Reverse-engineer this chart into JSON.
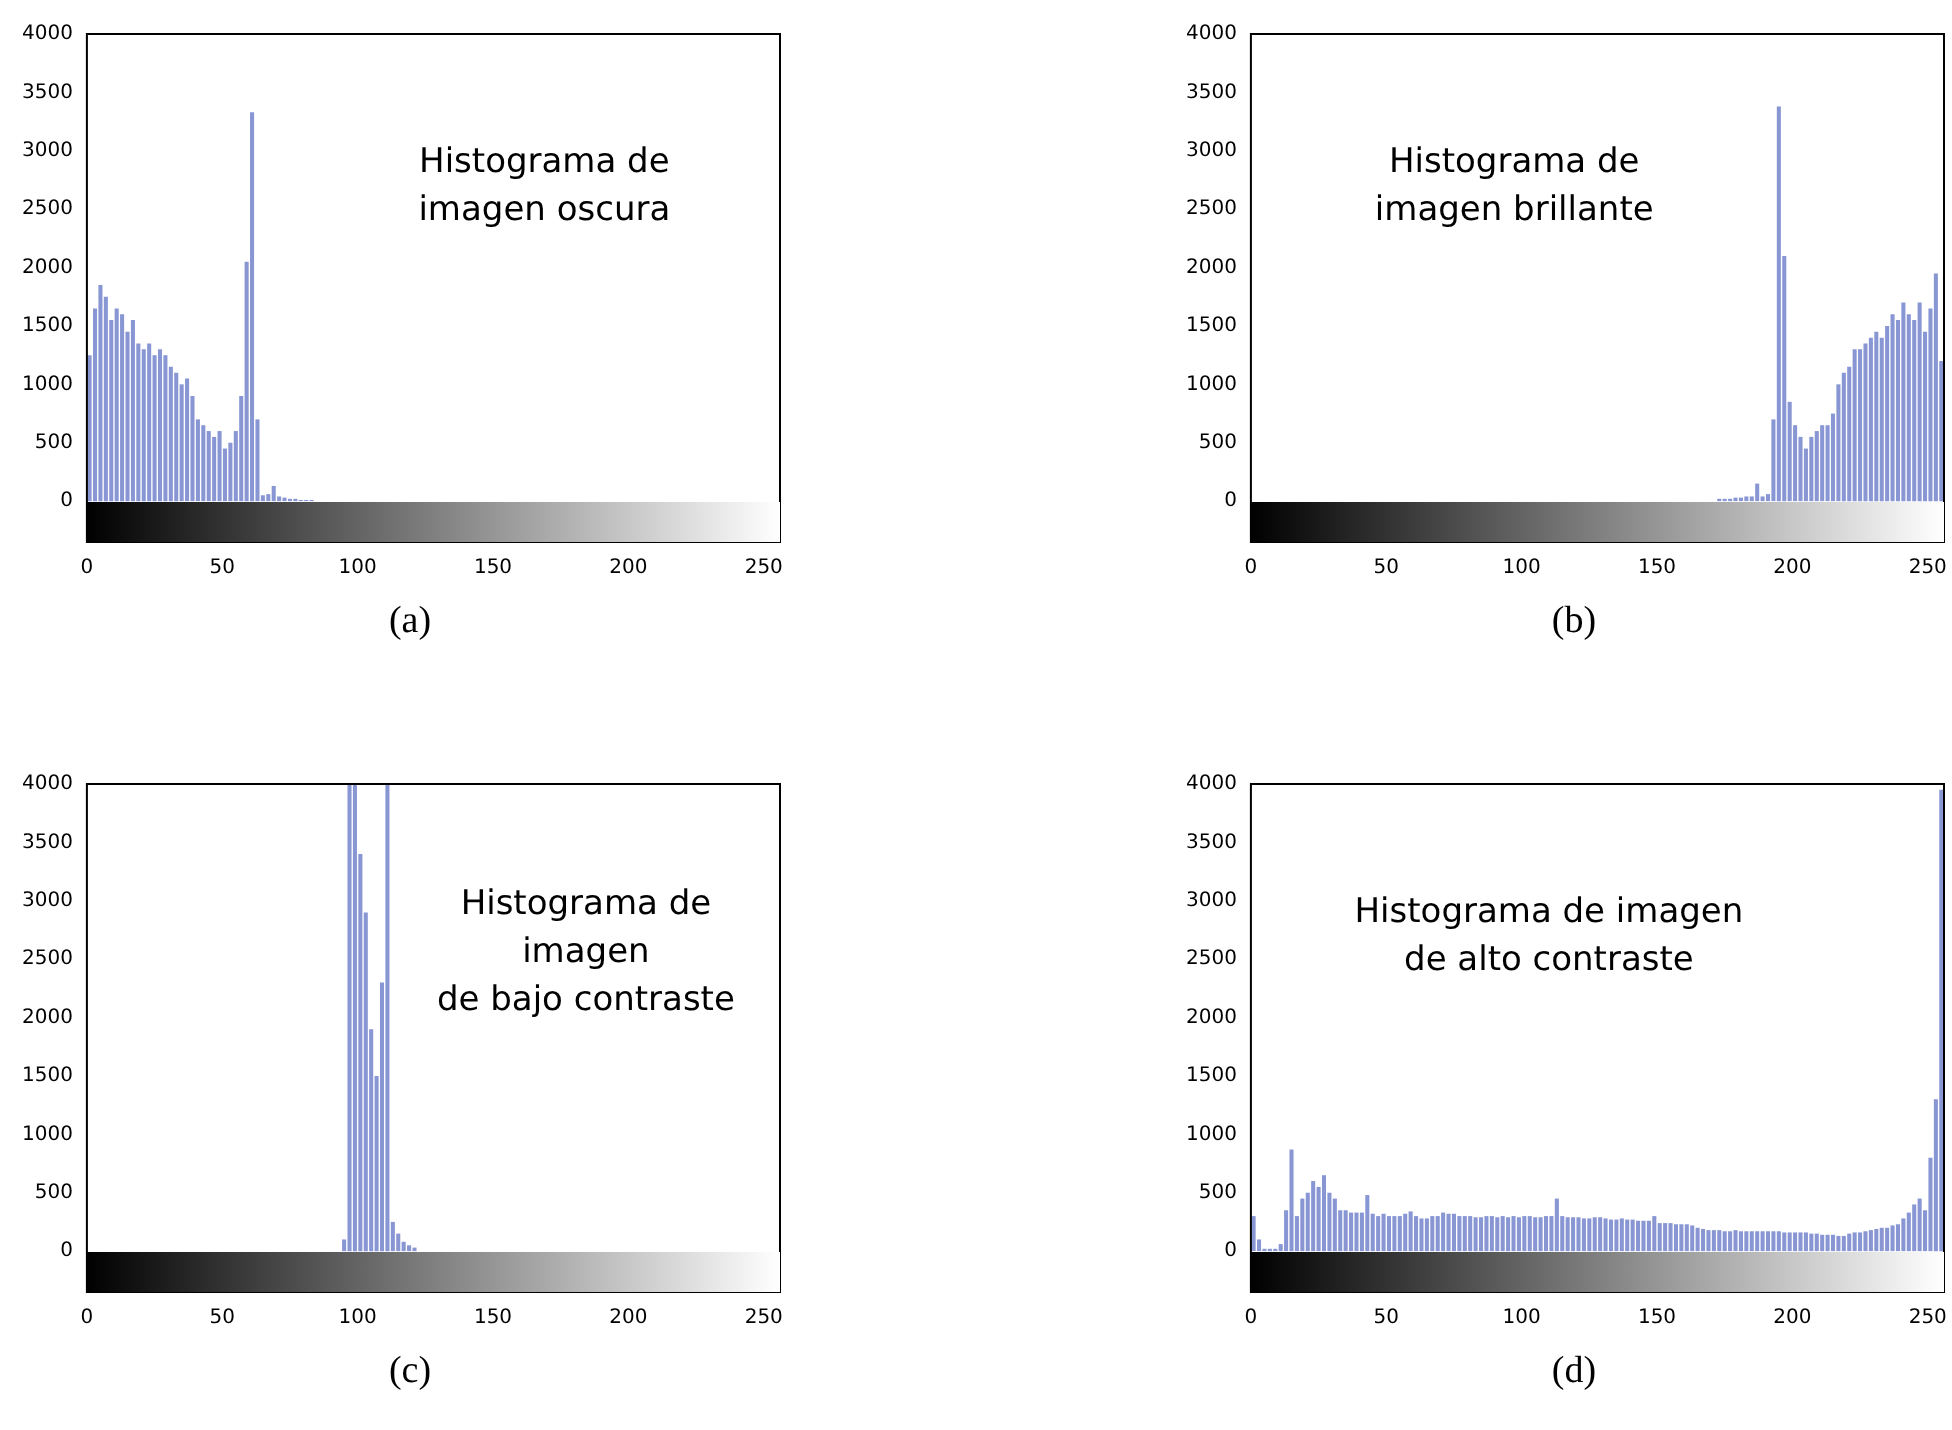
{
  "chart_data": [
    {
      "type": "histogram",
      "annotations": [
        "Histograma de\nimagen oscura",
        "(a)"
      ],
      "color": "#8896d4",
      "xlim": [
        0,
        256
      ],
      "xticks": [
        0,
        50,
        100,
        150,
        200,
        250
      ],
      "ylim": [
        -350,
        4000
      ],
      "yticks": [
        0,
        500,
        1000,
        1500,
        2000,
        2500,
        3000,
        3500,
        4000
      ],
      "bins": [
        0,
        2,
        4,
        6,
        8,
        10,
        12,
        14,
        16,
        18,
        20,
        22,
        24,
        26,
        28,
        30,
        32,
        34,
        36,
        38,
        40,
        42,
        44,
        46,
        48,
        50,
        52,
        54,
        56,
        58,
        60,
        62,
        64,
        66,
        68,
        70,
        72,
        74,
        76,
        78,
        80,
        82,
        84,
        86,
        88,
        90,
        92,
        94,
        96,
        98,
        100,
        102,
        104,
        106,
        108,
        110,
        112,
        114,
        116,
        118,
        120,
        122,
        124,
        126,
        128,
        130,
        132,
        134,
        136,
        138,
        140,
        142,
        144,
        146,
        148,
        150,
        152,
        154,
        156,
        158,
        160,
        162,
        164,
        166,
        168,
        170,
        172,
        174,
        176,
        178,
        180,
        182,
        184,
        186,
        188,
        190,
        192,
        194,
        196,
        198,
        200,
        202,
        204,
        206,
        208,
        210,
        212,
        214,
        216,
        218,
        220,
        222,
        224,
        226,
        228,
        230,
        232,
        234,
        236,
        238,
        240,
        242,
        244,
        246,
        248,
        250,
        252,
        254,
        256
      ],
      "values": [
        1250,
        1650,
        1850,
        1750,
        1550,
        1650,
        1600,
        1450,
        1550,
        1350,
        1300,
        1350,
        1250,
        1300,
        1250,
        1150,
        1100,
        1000,
        1050,
        900,
        700,
        650,
        600,
        550,
        600,
        450,
        500,
        600,
        900,
        2050,
        3330,
        700,
        50,
        60,
        130,
        40,
        30,
        20,
        20,
        10,
        10,
        10,
        0,
        0,
        0,
        0,
        0,
        0,
        0,
        0,
        0,
        0,
        0,
        0,
        0,
        0,
        0,
        0,
        0,
        0,
        0,
        0,
        0,
        0,
        0,
        0,
        0,
        0,
        0,
        0,
        0,
        0,
        0,
        0,
        0,
        0,
        0,
        0,
        0,
        0,
        0,
        0,
        0,
        0,
        0,
        0,
        0,
        0,
        0,
        0,
        0,
        0,
        0,
        0,
        0,
        0,
        0,
        0,
        0,
        0,
        0,
        0,
        0,
        0,
        0,
        0,
        0,
        0,
        0,
        0,
        0,
        0,
        0,
        0,
        0,
        0,
        0,
        0,
        0,
        0,
        0,
        0,
        0,
        0,
        0,
        0,
        0,
        0
      ]
    },
    {
      "type": "histogram",
      "annotations": [
        "Histograma de\nimagen brillante",
        "(b)"
      ],
      "color": "#8896d4",
      "xlim": [
        0,
        256
      ],
      "xticks": [
        0,
        50,
        100,
        150,
        200,
        250
      ],
      "ylim": [
        -350,
        4000
      ],
      "yticks": [
        0,
        500,
        1000,
        1500,
        2000,
        2500,
        3000,
        3500,
        4000
      ],
      "bins": [
        0,
        2,
        4,
        6,
        8,
        10,
        12,
        14,
        16,
        18,
        20,
        22,
        24,
        26,
        28,
        30,
        32,
        34,
        36,
        38,
        40,
        42,
        44,
        46,
        48,
        50,
        52,
        54,
        56,
        58,
        60,
        62,
        64,
        66,
        68,
        70,
        72,
        74,
        76,
        78,
        80,
        82,
        84,
        86,
        88,
        90,
        92,
        94,
        96,
        98,
        100,
        102,
        104,
        106,
        108,
        110,
        112,
        114,
        116,
        118,
        120,
        122,
        124,
        126,
        128,
        130,
        132,
        134,
        136,
        138,
        140,
        142,
        144,
        146,
        148,
        150,
        152,
        154,
        156,
        158,
        160,
        162,
        164,
        166,
        168,
        170,
        172,
        174,
        176,
        178,
        180,
        182,
        184,
        186,
        188,
        190,
        192,
        194,
        196,
        198,
        200,
        202,
        204,
        206,
        208,
        210,
        212,
        214,
        216,
        218,
        220,
        222,
        224,
        226,
        228,
        230,
        232,
        234,
        236,
        238,
        240,
        242,
        244,
        246,
        248,
        250,
        252,
        254,
        256
      ],
      "values": [
        0,
        0,
        0,
        0,
        0,
        0,
        0,
        0,
        0,
        0,
        0,
        0,
        0,
        0,
        0,
        0,
        0,
        0,
        0,
        0,
        0,
        0,
        0,
        0,
        0,
        0,
        0,
        0,
        0,
        0,
        0,
        0,
        0,
        0,
        0,
        0,
        0,
        0,
        0,
        0,
        0,
        0,
        0,
        0,
        0,
        0,
        0,
        0,
        0,
        0,
        0,
        0,
        0,
        0,
        0,
        0,
        0,
        0,
        0,
        0,
        0,
        0,
        0,
        0,
        0,
        0,
        0,
        0,
        0,
        0,
        0,
        0,
        0,
        0,
        0,
        0,
        0,
        0,
        0,
        0,
        0,
        0,
        0,
        0,
        0,
        0,
        20,
        20,
        20,
        30,
        30,
        40,
        40,
        150,
        40,
        60,
        700,
        3380,
        2100,
        850,
        650,
        550,
        450,
        550,
        600,
        650,
        650,
        750,
        1000,
        1100,
        1150,
        1300,
        1300,
        1350,
        1400,
        1450,
        1400,
        1500,
        1600,
        1550,
        1700,
        1600,
        1550,
        1700,
        1450,
        1650,
        1950,
        1200
      ]
    },
    {
      "type": "histogram",
      "annotations": [
        "Histograma de\nimagen\nde bajo contraste",
        "(c)"
      ],
      "color": "#8896d4",
      "xlim": [
        0,
        256
      ],
      "xticks": [
        0,
        50,
        100,
        150,
        200,
        250
      ],
      "ylim": [
        -350,
        4000
      ],
      "yticks": [
        0,
        500,
        1000,
        1500,
        2000,
        2500,
        3000,
        3500,
        4000
      ],
      "bins": [
        0,
        2,
        4,
        6,
        8,
        10,
        12,
        14,
        16,
        18,
        20,
        22,
        24,
        26,
        28,
        30,
        32,
        34,
        36,
        38,
        40,
        42,
        44,
        46,
        48,
        50,
        52,
        54,
        56,
        58,
        60,
        62,
        64,
        66,
        68,
        70,
        72,
        74,
        76,
        78,
        80,
        82,
        84,
        86,
        88,
        90,
        92,
        94,
        96,
        98,
        100,
        102,
        104,
        106,
        108,
        110,
        112,
        114,
        116,
        118,
        120,
        122,
        124,
        126,
        128,
        130,
        132,
        134,
        136,
        138,
        140,
        142,
        144,
        146,
        148,
        150,
        152,
        154,
        156,
        158,
        160,
        162,
        164,
        166,
        168,
        170,
        172,
        174,
        176,
        178,
        180,
        182,
        184,
        186,
        188,
        190,
        192,
        194,
        196,
        198,
        200,
        202,
        204,
        206,
        208,
        210,
        212,
        214,
        216,
        218,
        220,
        222,
        224,
        226,
        228,
        230,
        232,
        234,
        236,
        238,
        240,
        242,
        244,
        246,
        248,
        250,
        252,
        254,
        256
      ],
      "values": [
        0,
        0,
        0,
        0,
        0,
        0,
        0,
        0,
        0,
        0,
        0,
        0,
        0,
        0,
        0,
        0,
        0,
        0,
        0,
        0,
        0,
        0,
        0,
        0,
        0,
        0,
        0,
        0,
        0,
        0,
        0,
        0,
        0,
        0,
        0,
        0,
        0,
        0,
        0,
        0,
        0,
        0,
        0,
        0,
        0,
        0,
        0,
        100,
        4000,
        4000,
        3400,
        2900,
        1900,
        1500,
        2300,
        4000,
        250,
        150,
        80,
        50,
        30,
        0,
        0,
        0,
        0,
        0,
        0,
        0,
        0,
        0,
        0,
        0,
        0,
        0,
        0,
        0,
        0,
        0,
        0,
        0,
        0,
        0,
        0,
        0,
        0,
        0,
        0,
        0,
        0,
        0,
        0,
        0,
        0,
        0,
        0,
        0,
        0,
        0,
        0,
        0,
        0,
        0,
        0,
        0,
        0,
        0,
        0,
        0,
        0,
        0,
        0,
        0,
        0,
        0,
        0,
        0,
        0,
        0,
        0,
        0,
        0,
        0,
        0,
        0,
        0,
        0,
        0,
        0
      ]
    },
    {
      "type": "histogram",
      "annotations": [
        "Histograma de imagen\nde alto contraste",
        "(d)"
      ],
      "color": "#8896d4",
      "xlim": [
        0,
        256
      ],
      "xticks": [
        0,
        50,
        100,
        150,
        200,
        250
      ],
      "ylim": [
        -350,
        4000
      ],
      "yticks": [
        0,
        500,
        1000,
        1500,
        2000,
        2500,
        3000,
        3500,
        4000
      ],
      "bins": [
        0,
        2,
        4,
        6,
        8,
        10,
        12,
        14,
        16,
        18,
        20,
        22,
        24,
        26,
        28,
        30,
        32,
        34,
        36,
        38,
        40,
        42,
        44,
        46,
        48,
        50,
        52,
        54,
        56,
        58,
        60,
        62,
        64,
        66,
        68,
        70,
        72,
        74,
        76,
        78,
        80,
        82,
        84,
        86,
        88,
        90,
        92,
        94,
        96,
        98,
        100,
        102,
        104,
        106,
        108,
        110,
        112,
        114,
        116,
        118,
        120,
        122,
        124,
        126,
        128,
        130,
        132,
        134,
        136,
        138,
        140,
        142,
        144,
        146,
        148,
        150,
        152,
        154,
        156,
        158,
        160,
        162,
        164,
        166,
        168,
        170,
        172,
        174,
        176,
        178,
        180,
        182,
        184,
        186,
        188,
        190,
        192,
        194,
        196,
        198,
        200,
        202,
        204,
        206,
        208,
        210,
        212,
        214,
        216,
        218,
        220,
        222,
        224,
        226,
        228,
        230,
        232,
        234,
        236,
        238,
        240,
        242,
        244,
        246,
        248,
        250,
        252,
        254,
        256
      ],
      "values": [
        300,
        100,
        20,
        20,
        20,
        60,
        350,
        870,
        300,
        450,
        500,
        600,
        550,
        650,
        500,
        450,
        350,
        350,
        330,
        330,
        330,
        480,
        320,
        300,
        320,
        300,
        300,
        300,
        320,
        340,
        300,
        280,
        280,
        300,
        300,
        330,
        320,
        320,
        300,
        300,
        300,
        290,
        290,
        300,
        300,
        290,
        300,
        290,
        300,
        290,
        300,
        300,
        290,
        290,
        300,
        300,
        450,
        300,
        290,
        290,
        290,
        280,
        280,
        290,
        290,
        280,
        270,
        270,
        280,
        270,
        270,
        260,
        260,
        260,
        300,
        240,
        240,
        240,
        230,
        230,
        230,
        220,
        200,
        190,
        180,
        180,
        180,
        170,
        170,
        180,
        170,
        170,
        170,
        170,
        170,
        170,
        170,
        170,
        160,
        160,
        160,
        160,
        160,
        150,
        150,
        140,
        140,
        140,
        130,
        130,
        150,
        160,
        160,
        170,
        180,
        190,
        200,
        200,
        220,
        230,
        280,
        330,
        400,
        450,
        350,
        800,
        1300,
        3950
      ]
    }
  ]
}
